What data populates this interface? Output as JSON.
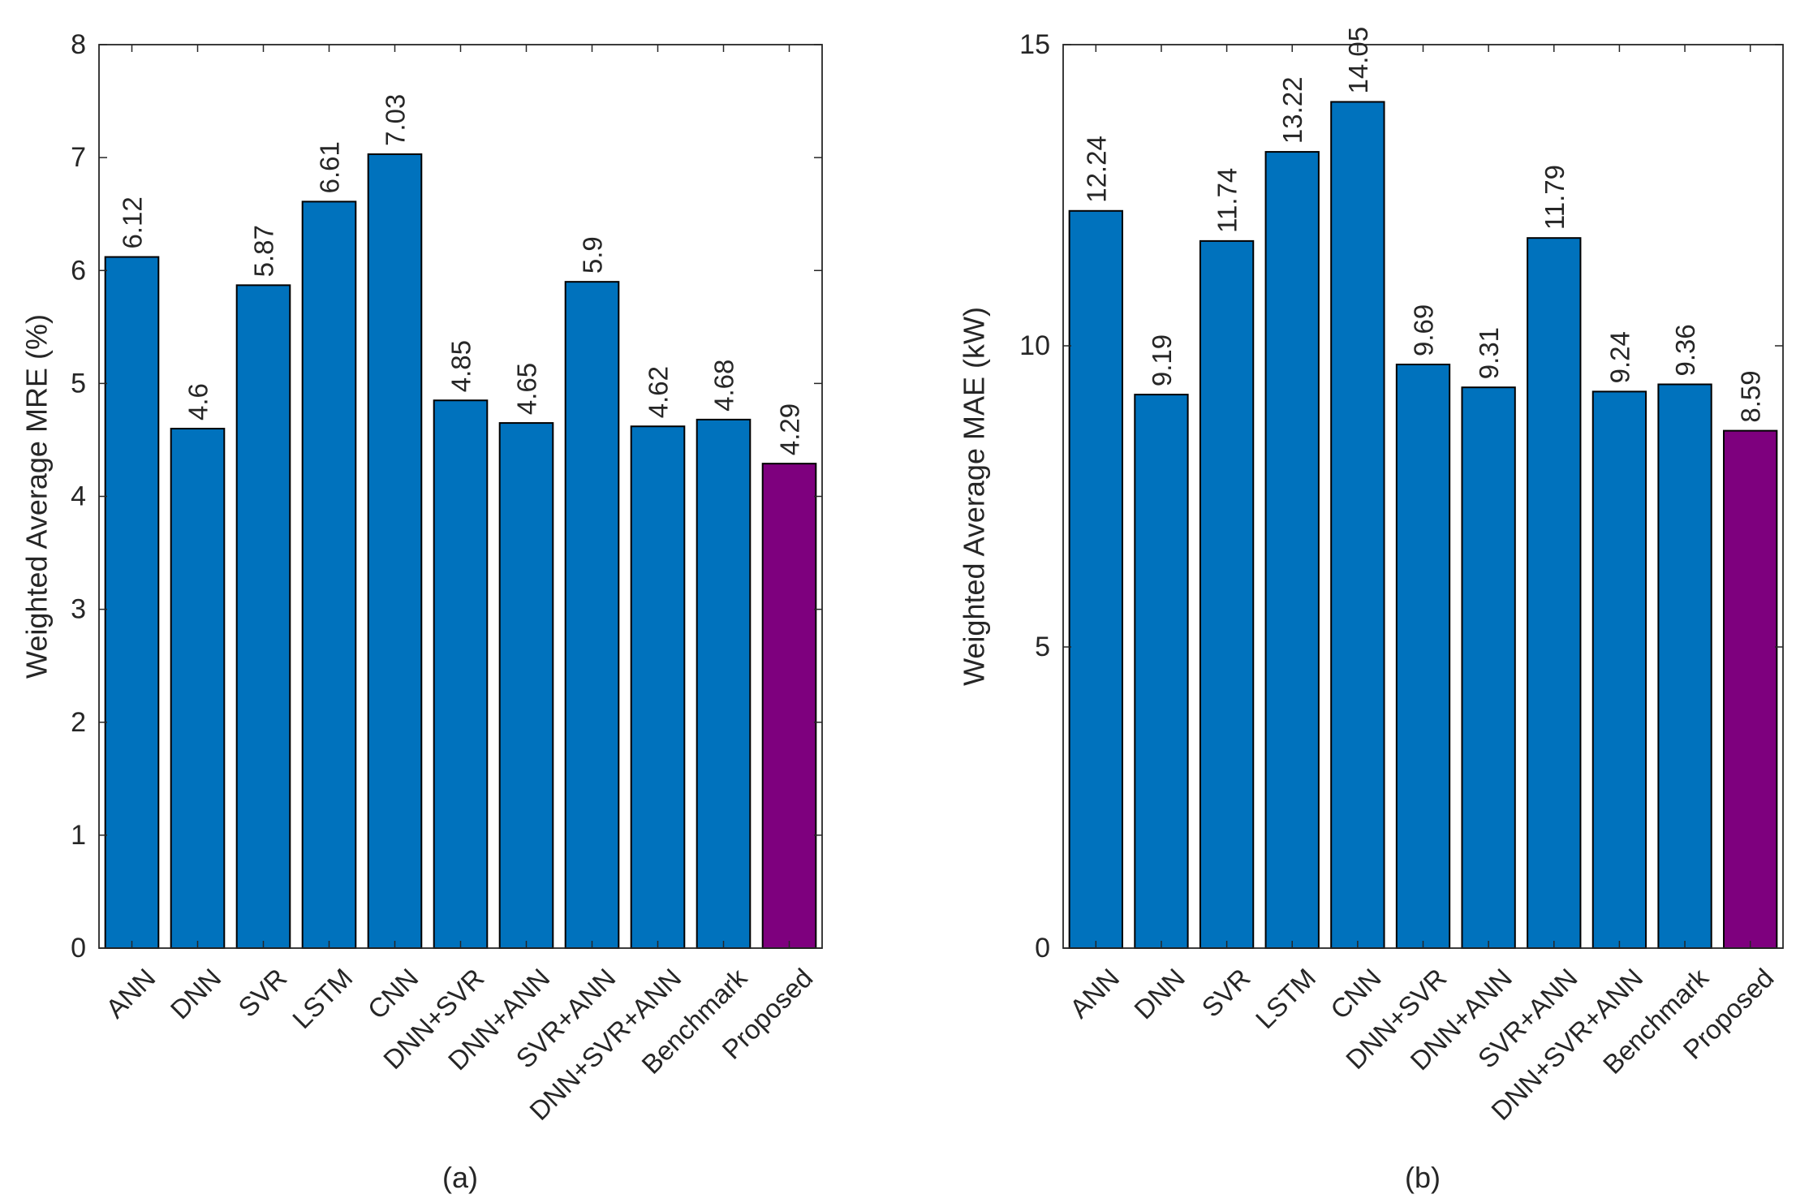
{
  "colors": {
    "default_bar": "#0072BD",
    "highlight_bar": "#7E007E",
    "axis": "#262626"
  },
  "chart_data": [
    {
      "type": "bar",
      "caption": "(a)",
      "ylabel": "Weighted Average MRE (%)",
      "xlabel": "",
      "ylim": [
        0,
        8
      ],
      "yticks": [
        0,
        1,
        2,
        3,
        4,
        5,
        6,
        7,
        8
      ],
      "categories": [
        "ANN",
        "DNN",
        "SVR",
        "LSTM",
        "CNN",
        "DNN+SVR",
        "DNN+ANN",
        "SVR+ANN",
        "DNN+SVR+ANN",
        "Benchmark",
        "Proposed"
      ],
      "values": [
        6.12,
        4.6,
        5.87,
        6.61,
        7.03,
        4.85,
        4.65,
        5.9,
        4.62,
        4.68,
        4.29
      ],
      "value_labels": [
        "6.12",
        "4.6",
        "5.87",
        "6.61",
        "7.03",
        "4.85",
        "4.65",
        "5.9",
        "4.62",
        "4.68",
        "4.29"
      ],
      "highlight": "Proposed"
    },
    {
      "type": "bar",
      "caption": "(b)",
      "ylabel": "Weighted Average MAE (kW)",
      "xlabel": "",
      "ylim": [
        0,
        15
      ],
      "yticks": [
        0,
        5,
        10,
        15
      ],
      "categories": [
        "ANN",
        "DNN",
        "SVR",
        "LSTM",
        "CNN",
        "DNN+SVR",
        "DNN+ANN",
        "SVR+ANN",
        "DNN+SVR+ANN",
        "Benchmark",
        "Proposed"
      ],
      "values": [
        12.24,
        9.19,
        11.74,
        13.22,
        14.05,
        9.69,
        9.31,
        11.79,
        9.24,
        9.36,
        8.59
      ],
      "value_labels": [
        "12.24",
        "9.19",
        "11.74",
        "13.22",
        "14.05",
        "9.69",
        "9.31",
        "11.79",
        "9.24",
        "9.36",
        "8.59"
      ],
      "highlight": "Proposed"
    }
  ]
}
